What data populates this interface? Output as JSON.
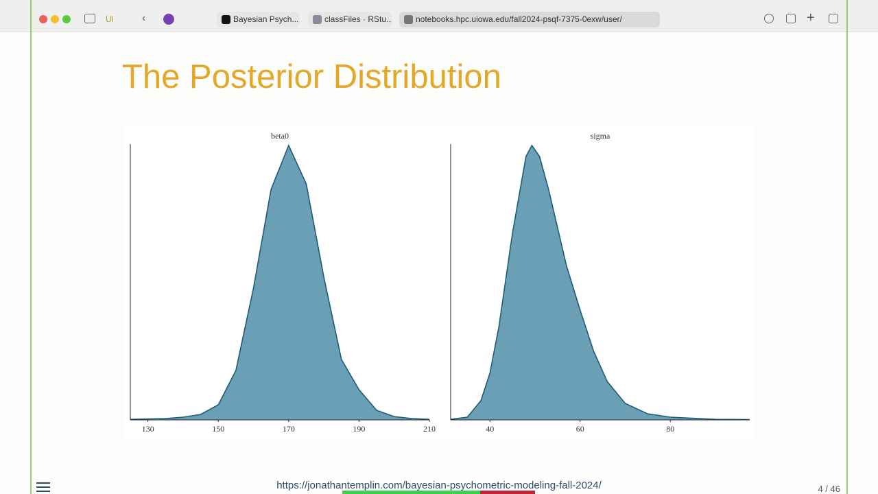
{
  "browser": {
    "profile": "UI",
    "tabs": [
      {
        "title": "Bayesian Psych..."
      },
      {
        "title": "classFiles · RStu..."
      },
      {
        "title": "notebooks.hpc.uiowa.edu/fall2024-psqf-7375-0exw/user/"
      }
    ]
  },
  "slide": {
    "title": "The Posterior Distribution",
    "footer_url": "https://jonathantemplin.com/bayesian-psychometric-modeling-fall-2024/",
    "page": "4 / 46"
  },
  "chart_data": [
    {
      "type": "area",
      "title": "beta0",
      "color": "#6a9fb5",
      "line_color": "#1d5b78",
      "x": [
        125,
        135,
        140,
        145,
        150,
        155,
        160,
        165,
        170,
        175,
        180,
        185,
        190,
        195,
        200,
        205,
        210
      ],
      "values": [
        0.2,
        0.5,
        1,
        2,
        5.5,
        18,
        48,
        84,
        100,
        86,
        52,
        22,
        11,
        3.5,
        1.2,
        0.5,
        0.2
      ],
      "xlim": [
        125,
        210
      ],
      "xticks": [
        130,
        150,
        170,
        190,
        210
      ],
      "ylim": [
        0,
        100
      ]
    },
    {
      "type": "area",
      "title": "sigma",
      "color": "#6a9fb5",
      "line_color": "#1d5b78",
      "x": [
        31.3,
        35,
        38,
        40,
        42,
        45,
        48,
        49.3,
        51,
        53,
        55,
        57,
        60,
        63,
        66,
        70,
        75,
        80,
        90,
        97.6
      ],
      "values": [
        0.2,
        1,
        7,
        17,
        34,
        68,
        96,
        100,
        96,
        84,
        70,
        56,
        40,
        25,
        14,
        6,
        2.2,
        1,
        0.2,
        0.1
      ],
      "xlim": [
        31.3,
        97.6
      ],
      "xticks": [
        40,
        60,
        80
      ],
      "ylim": [
        0,
        100
      ]
    }
  ]
}
